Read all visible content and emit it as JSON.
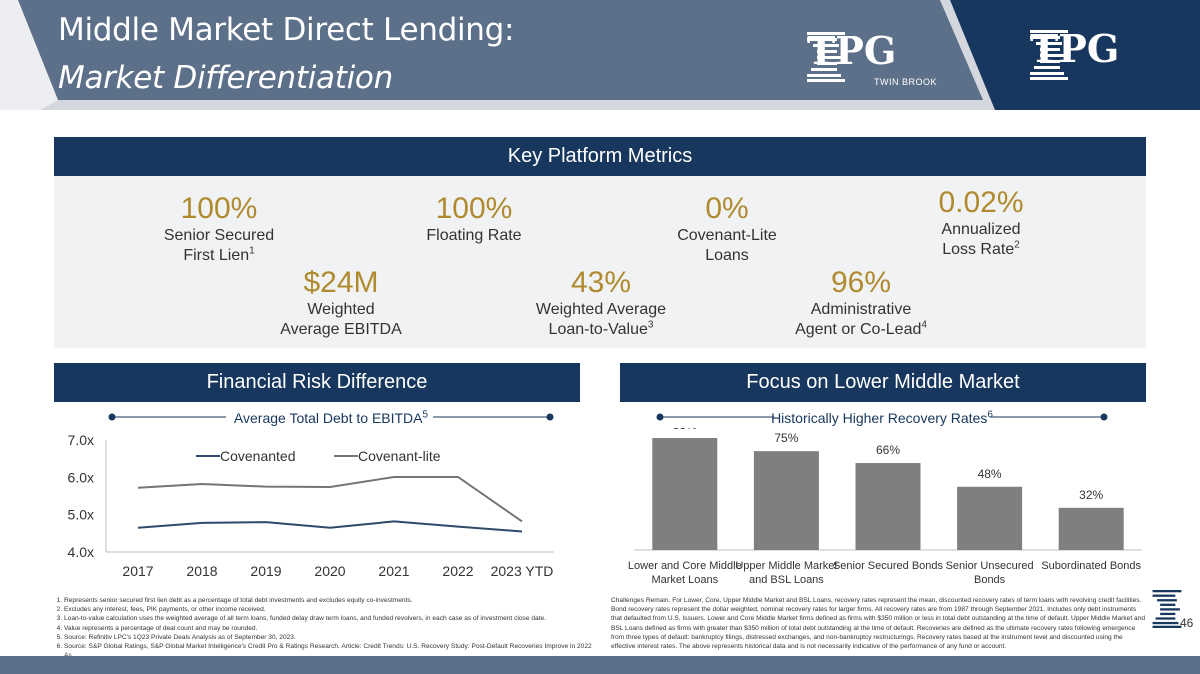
{
  "header": {
    "title_line1": "Middle Market Direct Lending:",
    "title_line2": "Market Differentiation",
    "logo1_text": "TPG",
    "logo1_sub": "TWIN BROOK",
    "logo2_text": "TPG",
    "colors": {
      "light_band": "#5d7089",
      "dark_band": "#17375e",
      "accent": "#b08a2e"
    }
  },
  "key_metrics": {
    "title": "Key Platform Metrics",
    "items": [
      {
        "value": "100%",
        "label1": "Senior Secured",
        "label2": "First Lien",
        "sup": "1"
      },
      {
        "value": "100%",
        "label1": "Floating Rate",
        "label2": "",
        "sup": ""
      },
      {
        "value": "0%",
        "label1": "Covenant-Lite",
        "label2": "Loans",
        "sup": ""
      },
      {
        "value": "0.02%",
        "label1": "Annualized",
        "label2": "Loss Rate",
        "sup": "2"
      },
      {
        "value": "$24M",
        "label1": "Weighted",
        "label2": "Average EBITDA",
        "sup": ""
      },
      {
        "value": "43%",
        "label1": "Weighted Average",
        "label2": "Loan-to-Value",
        "sup": "3"
      },
      {
        "value": "96%",
        "label1": "Administrative",
        "label2": "Agent or Co-Lead",
        "sup": "4"
      }
    ]
  },
  "financial_risk": {
    "title": "Financial Risk Difference",
    "subtitle": "Average Total Debt to EBITDA",
    "subtitle_sup": "5"
  },
  "lower_middle": {
    "title": "Focus on Lower Middle Market",
    "subtitle": "Historically Higher Recovery Rates",
    "subtitle_sup": "6"
  },
  "chart_data": [
    {
      "type": "line",
      "title": "Average Total Debt to EBITDA",
      "x": [
        "2017",
        "2018",
        "2019",
        "2020",
        "2021",
        "2022",
        "2023 YTD"
      ],
      "yticks": [
        "4.0x",
        "5.0x",
        "6.0x",
        "7.0x"
      ],
      "ylim": [
        4.0,
        7.0
      ],
      "legend": "top",
      "series": [
        {
          "name": "Covenanted",
          "color": "#2e4a6b",
          "values": [
            4.65,
            4.78,
            4.8,
            4.65,
            4.82,
            4.68,
            4.55
          ]
        },
        {
          "name": "Covenant-lite",
          "color": "#757575",
          "values": [
            5.72,
            5.82,
            5.75,
            5.74,
            6.01,
            6.01,
            4.82
          ]
        }
      ]
    },
    {
      "type": "bar",
      "title": "Historically Higher Recovery Rates",
      "categories": [
        [
          "Lower and Core Middle",
          "Market Loans"
        ],
        [
          "Upper Middle Market",
          "and BSL Loans"
        ],
        [
          "Senior Secured Bonds"
        ],
        [
          "Senior Unsecured",
          "Bonds"
        ],
        [
          "Subordinated Bonds"
        ]
      ],
      "values": [
        85,
        75,
        66,
        48,
        32
      ],
      "labels": [
        "85%",
        "75%",
        "66%",
        "48%",
        "32%"
      ],
      "ylim": [
        0,
        100
      ],
      "color": "#7f7f7f"
    }
  ],
  "footnotes_left": [
    "Represents senior secured first lien debt as a percentage of total debt investments and excludes equity co-investments.",
    "Excludes any interest, fees, PIK payments, or other income received.",
    "Loan-to-value calculation uses the weighted average of all term loans, funded delay draw term loans, and funded revolvers, in each case as of investment close date.",
    "Value represents a percentage of deal count and may be rounded.",
    "Source: Refinitiv LPC's 1Q23 Private Deals Analysis as of September 30, 2023.",
    "Source: S&P Global Ratings, S&P Global Market Intelligence's Credit Pro & Ratings Research. Article: Credit Trends: U.S. Recovery Study: Post-Default Recoveries Improve in 2022 As"
  ],
  "footnote_right": "Challenges Remain. For Lower, Core, Upper Middle Market and BSL Loans, recovery rates represent the mean, discounted recovery rates of term loans with revolving credit facilities. Bond recovery rates represent the dollar weighted, nominal recovery rates for larger firms. All recovery rates are from 1987 through September 2021. Includes only debt instruments that defaulted from U.S. Issuers. Lower and Core Middle Market firms defined as firms with $350 million or less in total debt outstanding at the time of default. Upper Middle Market and BSL Loans defined as firms with greater than $350 million of total debt outstanding at the time of default. Recoveries are defined as the ultimate recovery rates following emergence from three types of default: bankruptcy filings, distressed exchanges, and non-bankruptcy restructurings. Recovery rates based at the instrument level and discounted using the effective interest rates. The above represents historical data and is not necessarily indicative of the performance of any fund or account.",
  "page_number": "46"
}
